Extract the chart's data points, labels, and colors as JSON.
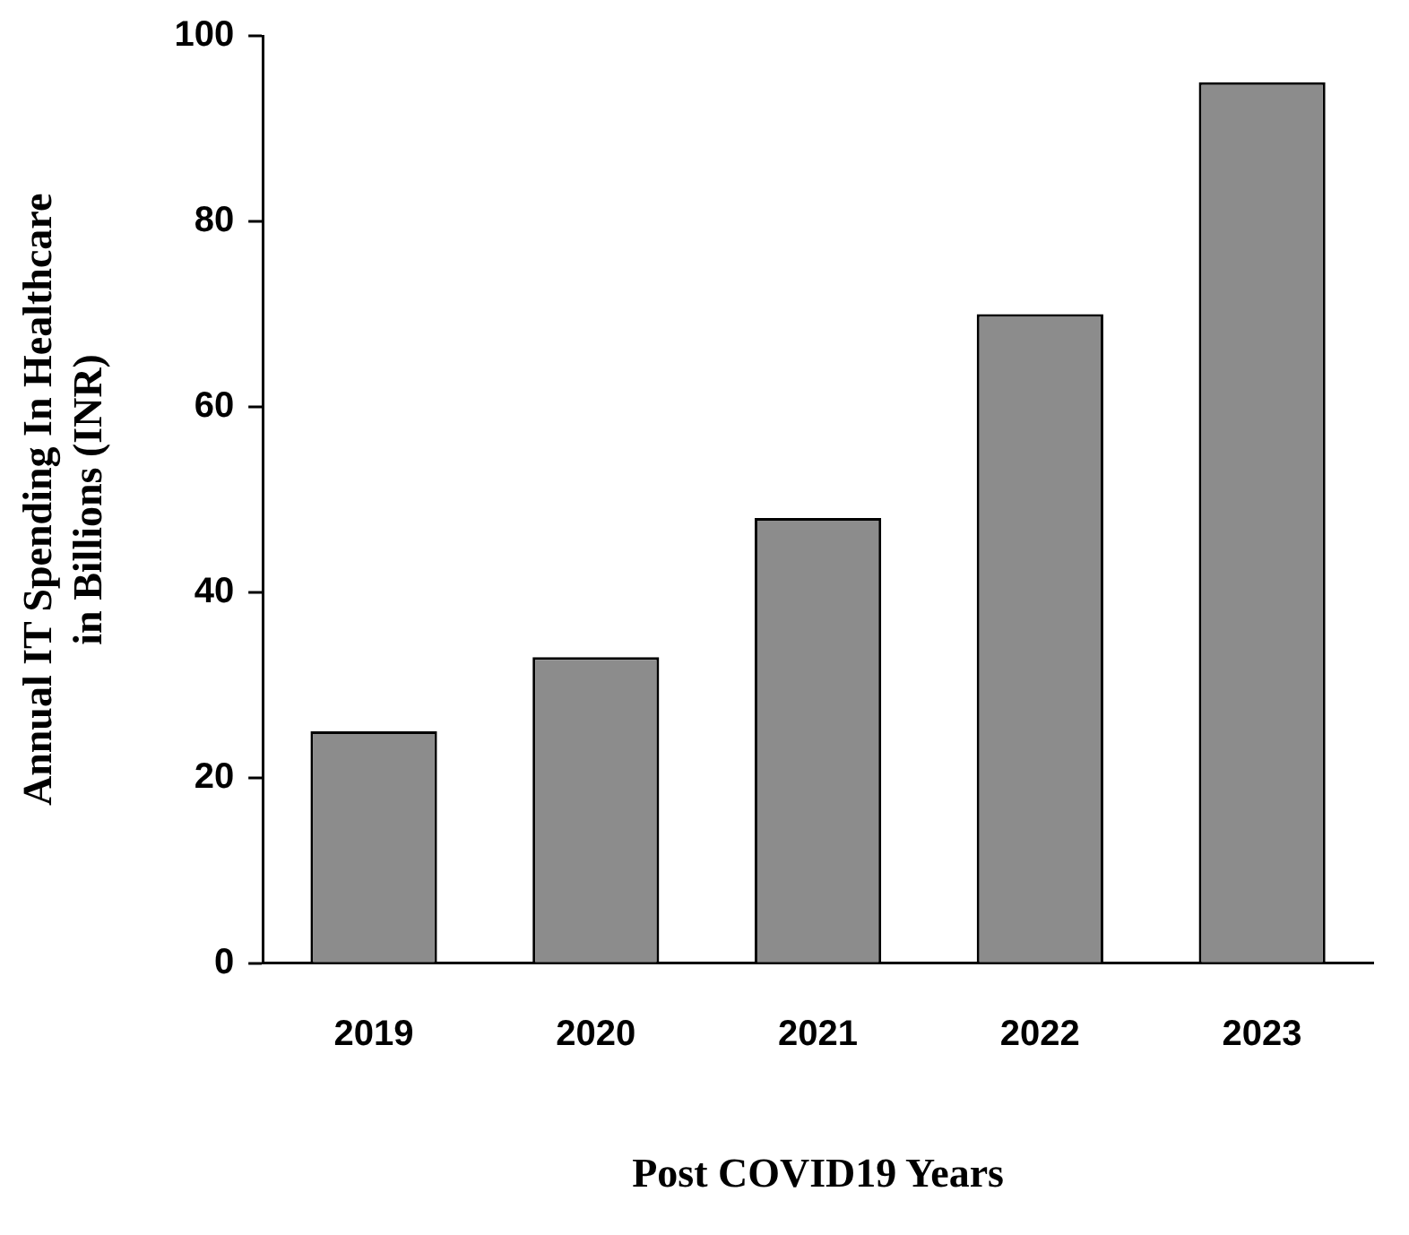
{
  "chart_data": {
    "type": "bar",
    "xlabel": "Post COVID19 Years",
    "ylabel": "Annual IT Spending In Healthcare\nin Billions (INR)",
    "categories": [
      "2019",
      "2020",
      "2021",
      "2022",
      "2023"
    ],
    "values": [
      25,
      33,
      48,
      70,
      95
    ],
    "color": "#8c8c8c",
    "ylim": [
      0,
      100
    ],
    "yticks": [
      0,
      20,
      40,
      60,
      80,
      100
    ],
    "grid": false,
    "legend": false
  }
}
